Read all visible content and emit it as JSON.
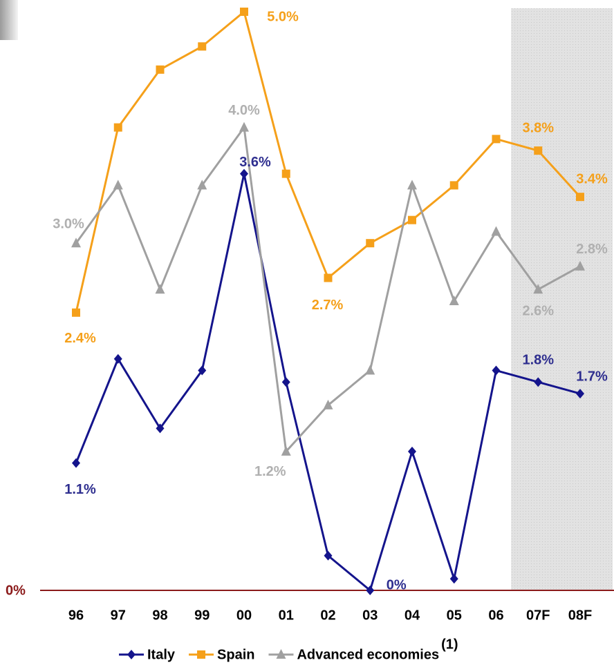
{
  "chart_data": {
    "type": "line",
    "categories": [
      "96",
      "97",
      "98",
      "99",
      "00",
      "01",
      "02",
      "03",
      "04",
      "05",
      "06",
      "07F",
      "08F"
    ],
    "ylim": [
      0,
      5
    ],
    "baseline_label": "0%",
    "baseline_color": "#8b1a1a",
    "legend_note": "(1)",
    "series": [
      {
        "name": "Italy",
        "color": "#14148c",
        "label_color": "#2e2e8f",
        "marker": "diamond",
        "values": [
          1.1,
          2.0,
          1.4,
          1.9,
          3.6,
          1.8,
          0.3,
          0,
          1.2,
          0.1,
          1.9,
          1.8,
          1.7
        ],
        "value_labels": [
          "1.1%",
          null,
          null,
          null,
          "3.6%",
          null,
          null,
          "0%",
          null,
          null,
          null,
          "1.8%",
          "1.7%"
        ]
      },
      {
        "name": "Spain",
        "color": "#f5a01a",
        "label_color": "#f5a01a",
        "marker": "square",
        "values": [
          2.4,
          4.0,
          4.5,
          4.7,
          5.0,
          3.6,
          2.7,
          3.0,
          3.2,
          3.5,
          3.9,
          3.8,
          3.4
        ],
        "value_labels": [
          "2.4%",
          null,
          null,
          null,
          "5.0%",
          null,
          "2.7%",
          null,
          null,
          null,
          null,
          "3.8%",
          "3.4%"
        ]
      },
      {
        "name": "Advanced economies",
        "color": "#a0a0a0",
        "label_color": "#b0b0b0",
        "marker": "triangle",
        "values": [
          3.0,
          3.5,
          2.6,
          3.5,
          4.0,
          1.2,
          1.6,
          1.9,
          3.5,
          2.5,
          3.1,
          2.6,
          2.8
        ],
        "value_labels": [
          "3.0%",
          null,
          null,
          null,
          "4.0%",
          "1.2%",
          null,
          null,
          null,
          null,
          null,
          "2.6%",
          "2.8%"
        ]
      }
    ]
  }
}
